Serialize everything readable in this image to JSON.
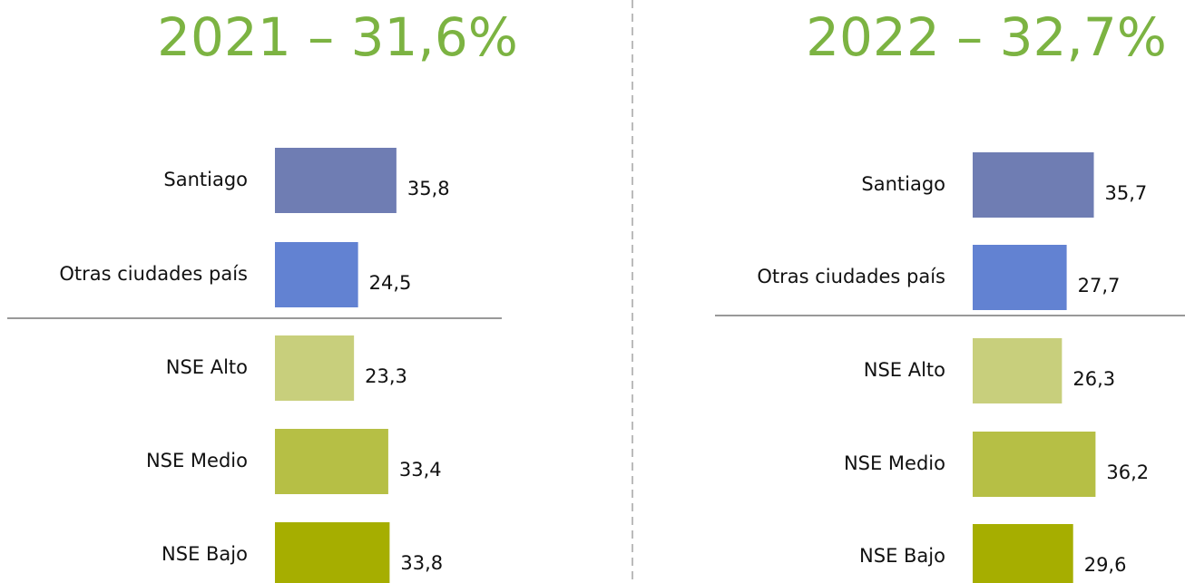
{
  "chart_data": [
    {
      "type": "bar",
      "orientation": "horizontal",
      "title": "2021 – 31,6%",
      "categories": [
        "Santiago",
        "Otras ciudades país",
        "NSE Alto",
        "NSE Medio",
        "NSE Bajo"
      ],
      "values": [
        35.8,
        24.5,
        23.3,
        33.4,
        33.8
      ],
      "value_labels": [
        "35,8",
        "24,5",
        "23,3",
        "33,4",
        "33,8"
      ],
      "colors": [
        "#6f7db3",
        "#6282d2",
        "#c8cf7c",
        "#b6bf45",
        "#a6ae00"
      ]
    },
    {
      "type": "bar",
      "orientation": "horizontal",
      "title": "2022 – 32,7%",
      "categories": [
        "Santiago",
        "Otras ciudades país",
        "NSE Alto",
        "NSE Medio",
        "NSE Bajo"
      ],
      "values": [
        35.7,
        27.7,
        26.3,
        36.2,
        29.6
      ],
      "value_labels": [
        "35,7",
        "27,7",
        "26,3",
        "36,2",
        "29,6"
      ],
      "colors": [
        "#6f7db3",
        "#6282d2",
        "#c8cf7c",
        "#b6bf45",
        "#a6ae00"
      ]
    }
  ]
}
